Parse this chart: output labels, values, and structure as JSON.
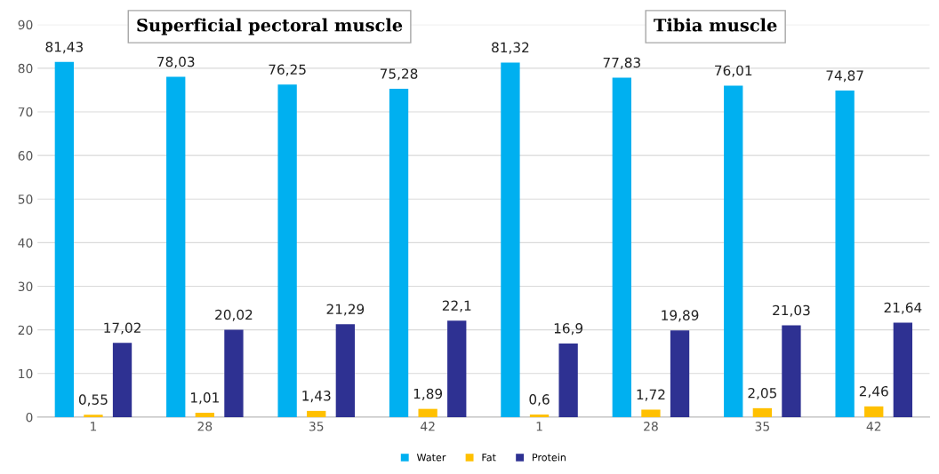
{
  "chart_data": {
    "type": "bar",
    "categories": [
      "1",
      "28",
      "35",
      "42",
      "1",
      "28",
      "35",
      "42"
    ],
    "series": [
      {
        "name": "Water",
        "color": "#00b0f0",
        "values": [
          81.43,
          78.03,
          76.25,
          75.28,
          81.32,
          77.83,
          76.01,
          74.87
        ],
        "value_labels": [
          "81,43",
          "78,03",
          "76,25",
          "75,28",
          "81,32",
          "77,83",
          "76,01",
          "74,87"
        ]
      },
      {
        "name": "Fat",
        "color": "#ffc000",
        "values": [
          0.55,
          1.01,
          1.43,
          1.89,
          0.6,
          1.72,
          2.05,
          2.46
        ],
        "value_labels": [
          "0,55",
          "1,01",
          "1,43",
          "1,89",
          "0,6",
          "1,72",
          "2,05",
          "2,46"
        ]
      },
      {
        "name": "Protein",
        "color": "#2e3192",
        "values": [
          17.02,
          20.02,
          21.29,
          22.1,
          16.9,
          19.89,
          21.03,
          21.64
        ],
        "value_labels": [
          "17,02",
          "20,02",
          "21,29",
          "22,1",
          "16,9",
          "19,89",
          "21,03",
          "21,64"
        ]
      }
    ],
    "annotations": [
      "Superficial pectoral muscle",
      "Tibia muscle"
    ],
    "ylim": [
      0,
      90
    ],
    "yticks": [
      0,
      10,
      20,
      30,
      40,
      50,
      60,
      70,
      80,
      90
    ],
    "grid": "y",
    "legend": "bottom"
  }
}
